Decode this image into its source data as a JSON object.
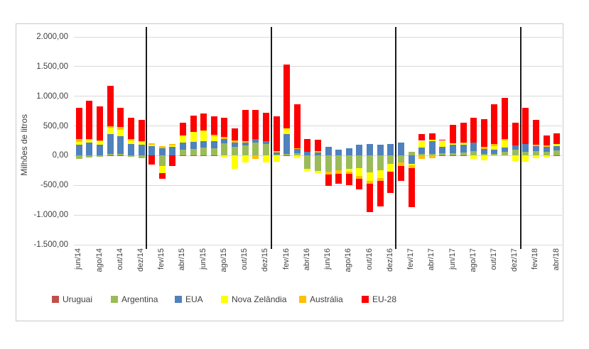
{
  "chart_data": {
    "type": "bar",
    "variant": "stacked-with-negatives",
    "title": "",
    "ylabel": "Milhões de litros",
    "xlabel": "",
    "ylim": [
      -1500,
      2000
    ],
    "grid": "horizontal",
    "legend_position": "bottom",
    "y_ticks": [
      {
        "value": 2000,
        "label": "2.000,00"
      },
      {
        "value": 1500,
        "label": "1.500,00"
      },
      {
        "value": 1000,
        "label": "1.000,00"
      },
      {
        "value": 500,
        "label": "500,00"
      },
      {
        "value": 0,
        "label": "0,00"
      },
      {
        "value": -500,
        "label": "-500,00"
      },
      {
        "value": -1000,
        "label": "-1.000,00"
      },
      {
        "value": -1500,
        "label": "-1.500,00"
      }
    ],
    "categories": [
      "jun/14",
      "jul/14",
      "ago/14",
      "set/14",
      "out/14",
      "nov/14",
      "dez/14",
      "jan/15",
      "fev/15",
      "mar/15",
      "abr/15",
      "mai/15",
      "jun/15",
      "jul/15",
      "ago/15",
      "set/15",
      "out/15",
      "nov/15",
      "dez/15",
      "jan/16",
      "fev/16",
      "mar/16",
      "abr/16",
      "mai/16",
      "jun/16",
      "jul/16",
      "ago/16",
      "set/16",
      "out/16",
      "nov/16",
      "dez/16",
      "jan/17",
      "fev/17",
      "mar/17",
      "abr/17",
      "mai/17",
      "jun/17",
      "jul/17",
      "ago/17",
      "set/17",
      "out/17",
      "nov/17",
      "dez/17",
      "jan/18",
      "fev/18",
      "mar/18",
      "abr/18"
    ],
    "x_tick_labels": [
      "jun/14",
      "ago/14",
      "out/14",
      "dez/14",
      "fev/15",
      "abr/15",
      "jun/15",
      "ago/15",
      "out/15",
      "dez/15",
      "fev/16",
      "abr/16",
      "jun/16",
      "ago/16",
      "out/16",
      "dez/16",
      "fev/17",
      "abr/17",
      "jun/17",
      "ago/17",
      "out/17",
      "dez/17",
      "fev/18",
      "abr/18"
    ],
    "year_separators_after_index": [
      6,
      18,
      30,
      42
    ],
    "series": [
      {
        "name": "Uruguai",
        "color": "#C0504D",
        "values": [
          5,
          5,
          5,
          5,
          5,
          5,
          5,
          0,
          0,
          0,
          5,
          5,
          5,
          5,
          5,
          5,
          5,
          5,
          5,
          0,
          5,
          0,
          0,
          0,
          0,
          0,
          0,
          0,
          0,
          0,
          0,
          0,
          0,
          0,
          5,
          5,
          5,
          5,
          0,
          0,
          0,
          0,
          0,
          0,
          0,
          0,
          5
        ]
      },
      {
        "name": "Argentina",
        "color": "#9BBB59",
        "values": [
          -50,
          -30,
          -20,
          20,
          20,
          -20,
          -45,
          5,
          -170,
          5,
          90,
          105,
          130,
          120,
          200,
          140,
          170,
          220,
          190,
          20,
          25,
          40,
          -220,
          -255,
          -265,
          -250,
          -220,
          -210,
          -280,
          -250,
          -140,
          -120,
          60,
          30,
          25,
          40,
          30,
          45,
          80,
          30,
          25,
          70,
          105,
          70,
          80,
          70,
          80
        ]
      },
      {
        "name": "EUA",
        "color": "#4F81BD",
        "values": [
          180,
          220,
          185,
          340,
          305,
          190,
          185,
          160,
          125,
          140,
          120,
          120,
          110,
          120,
          80,
          80,
          40,
          50,
          45,
          30,
          335,
          75,
          70,
          50,
          145,
          105,
          120,
          185,
          200,
          185,
          200,
          215,
          -140,
          110,
          210,
          105,
          145,
          140,
          135,
          80,
          80,
          70,
          70,
          130,
          80,
          75,
          80
        ]
      },
      {
        "name": "Nova Zelândia",
        "color": "#FFFF00",
        "values": [
          50,
          40,
          50,
          105,
          105,
          60,
          40,
          15,
          -120,
          25,
          120,
          170,
          180,
          80,
          -30,
          -220,
          -110,
          0,
          -120,
          -100,
          95,
          -40,
          -40,
          -35,
          0,
          0,
          -55,
          -135,
          -145,
          -130,
          -125,
          0,
          -20,
          110,
          30,
          100,
          30,
          25,
          -60,
          -80,
          60,
          115,
          -90,
          -105,
          -40,
          -30,
          30
        ]
      },
      {
        "name": "Austrália",
        "color": "#FFC000",
        "values": [
          40,
          20,
          15,
          20,
          45,
          30,
          10,
          30,
          30,
          30,
          0,
          0,
          0,
          25,
          25,
          30,
          25,
          -50,
          0,
          25,
          0,
          15,
          0,
          25,
          -55,
          -55,
          -35,
          -50,
          -50,
          -40,
          -10,
          -50,
          -55,
          -50,
          -40,
          0,
          0,
          10,
          0,
          40,
          30,
          25,
          0,
          0,
          25,
          25,
          0
        ]
      },
      {
        "name": "EU-28",
        "color": "#FF0000",
        "values": [
          530,
          635,
          570,
          685,
          325,
          355,
          360,
          -150,
          -100,
          -175,
          215,
          275,
          285,
          315,
          330,
          205,
          525,
          495,
          480,
          590,
          1080,
          740,
          215,
          195,
          -185,
          -170,
          -190,
          -170,
          -480,
          -430,
          -355,
          -255,
          -650,
          110,
          110,
          15,
          310,
          335,
          420,
          470,
          670,
          690,
          375,
          600,
          415,
          170,
          185
        ]
      }
    ]
  }
}
